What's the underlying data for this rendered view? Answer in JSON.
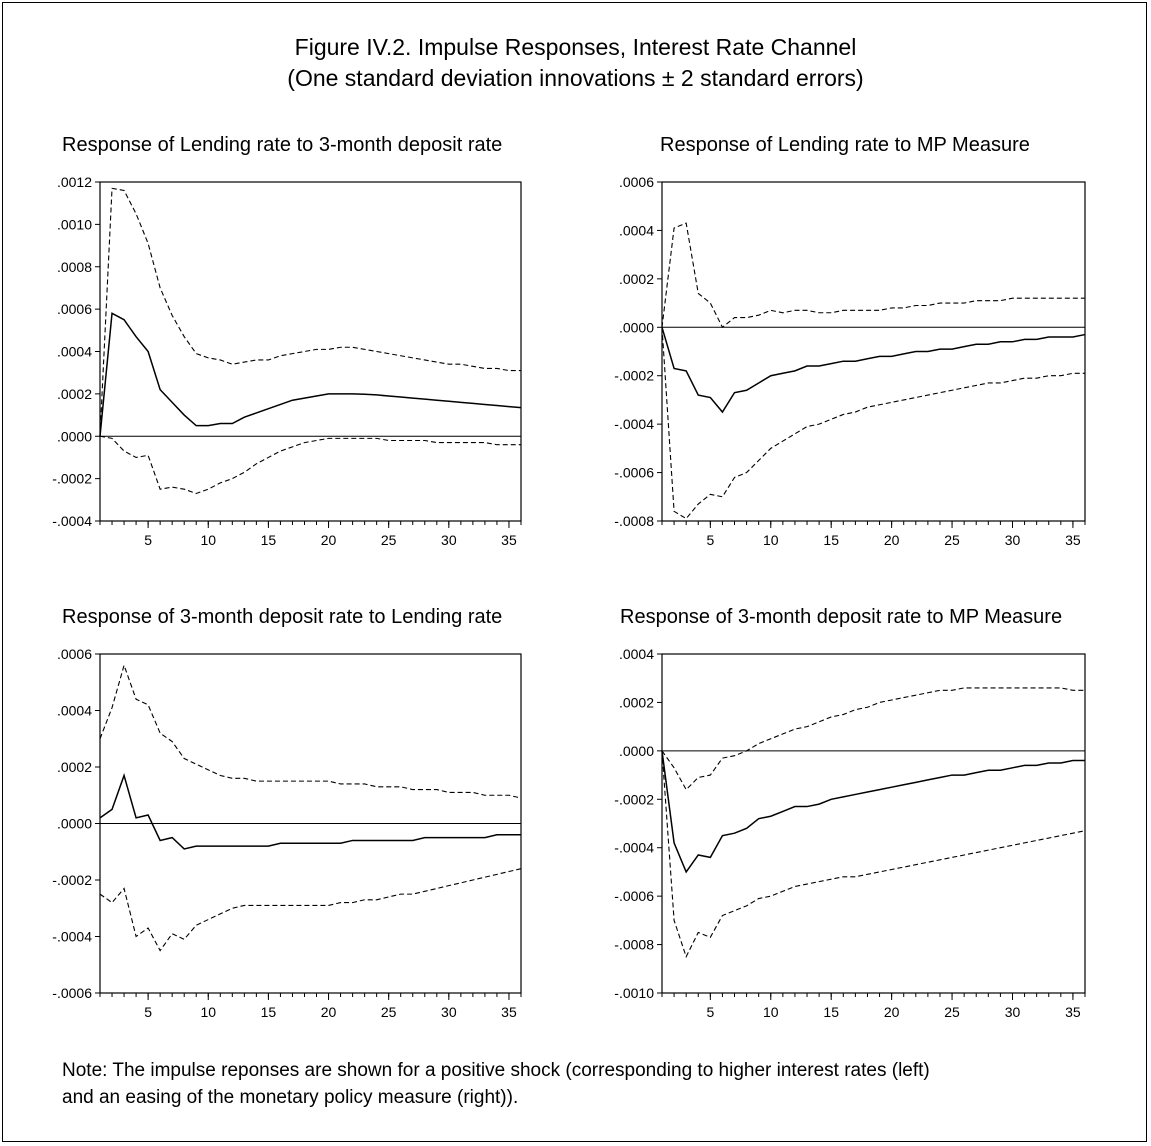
{
  "figure": {
    "title_line1": "Figure IV.2. Impulse Responses, Interest Rate Channel",
    "title_line2": "(One standard deviation innovations ± 2 standard errors)",
    "note_line1": "Note: The impulse reponses are shown for a positive shock (corresponding to higher interest rates (left)",
    "note_line2": " and an easing of the monetary policy measure (right))."
  },
  "chart_data": [
    {
      "type": "line",
      "title": "Response of Lending rate to 3-month deposit rate",
      "xlim": [
        1,
        36
      ],
      "ylim": [
        -0.0004,
        0.0012
      ],
      "xticks": [
        5,
        10,
        15,
        20,
        25,
        30,
        35
      ],
      "yticks": [
        -0.0004,
        -0.0002,
        0.0,
        0.0002,
        0.0004,
        0.0006,
        0.0008,
        0.001,
        0.0012
      ],
      "ytick_labels": [
        "-.0004",
        "-.0002",
        ".0000",
        ".0002",
        ".0004",
        ".0006",
        ".0008",
        ".0010",
        ".0012"
      ],
      "series": [
        {
          "style": "solid",
          "values": [
            0,
            0.00058,
            0.00055,
            0.00047,
            0.0004,
            0.00022,
            0.00016,
            0.0001,
            5e-05,
            5e-05,
            6e-05,
            6e-05,
            9e-05,
            0.00011,
            0.00013,
            0.00015,
            0.00017,
            0.00018,
            0.00019,
            0.0002,
            0.0002,
            0.0002,
            0.000198,
            0.000195,
            0.00019,
            0.000185,
            0.00018,
            0.000175,
            0.00017,
            0.000165,
            0.00016,
            0.000155,
            0.00015,
            0.000145,
            0.00014,
            0.000135
          ]
        },
        {
          "style": "dashed",
          "values": [
            0,
            0.00117,
            0.00116,
            0.00105,
            0.00091,
            0.0007,
            0.00057,
            0.00047,
            0.00039,
            0.00037,
            0.00036,
            0.00034,
            0.00035,
            0.00036,
            0.00036,
            0.00038,
            0.00039,
            0.0004,
            0.00041,
            0.00041,
            0.00042,
            0.00042,
            0.00041,
            0.0004,
            0.00039,
            0.00038,
            0.00037,
            0.00036,
            0.00035,
            0.00034,
            0.00034,
            0.00033,
            0.00032,
            0.00032,
            0.00031,
            0.00031
          ]
        },
        {
          "style": "dashed",
          "values": [
            0,
            -1e-05,
            -7e-05,
            -0.0001,
            -9e-05,
            -0.00025,
            -0.00024,
            -0.00025,
            -0.00027,
            -0.00025,
            -0.00022,
            -0.0002,
            -0.00017,
            -0.00013,
            -0.0001,
            -7e-05,
            -5e-05,
            -3e-05,
            -2e-05,
            -1e-05,
            -1e-05,
            -1e-05,
            -1e-05,
            -1e-05,
            -2e-05,
            -2e-05,
            -2e-05,
            -2e-05,
            -3e-05,
            -3e-05,
            -3e-05,
            -3e-05,
            -3e-05,
            -4e-05,
            -4e-05,
            -4e-05
          ]
        }
      ]
    },
    {
      "type": "line",
      "title": "Response of Lending rate to MP Measure",
      "xlim": [
        1,
        36
      ],
      "ylim": [
        -0.0008,
        0.0006
      ],
      "xticks": [
        5,
        10,
        15,
        20,
        25,
        30,
        35
      ],
      "yticks": [
        -0.0008,
        -0.0006,
        -0.0004,
        -0.0002,
        0.0,
        0.0002,
        0.0004,
        0.0006
      ],
      "ytick_labels": [
        "-.0008",
        "-.0006",
        "-.0004",
        "-.0002",
        ".0000",
        ".0002",
        ".0004",
        ".0006"
      ],
      "series": [
        {
          "style": "solid",
          "values": [
            0,
            -0.00017,
            -0.00018,
            -0.00028,
            -0.00029,
            -0.00035,
            -0.00027,
            -0.00026,
            -0.00023,
            -0.0002,
            -0.00019,
            -0.00018,
            -0.00016,
            -0.00016,
            -0.00015,
            -0.00014,
            -0.00014,
            -0.00013,
            -0.00012,
            -0.00012,
            -0.00011,
            -0.0001,
            -0.0001,
            -9e-05,
            -9e-05,
            -8e-05,
            -7e-05,
            -7e-05,
            -6e-05,
            -6e-05,
            -5e-05,
            -5e-05,
            -4e-05,
            -4e-05,
            -4e-05,
            -3e-05
          ]
        },
        {
          "style": "dashed",
          "values": [
            0,
            0.00041,
            0.00043,
            0.00014,
            0.0001,
            0.0,
            4e-05,
            4e-05,
            5e-05,
            7e-05,
            6e-05,
            7e-05,
            7e-05,
            6e-05,
            6e-05,
            7e-05,
            7e-05,
            7e-05,
            7e-05,
            8e-05,
            8e-05,
            9e-05,
            9e-05,
            0.0001,
            0.0001,
            0.0001,
            0.00011,
            0.00011,
            0.00011,
            0.00012,
            0.00012,
            0.00012,
            0.00012,
            0.00012,
            0.00012,
            0.00012
          ]
        },
        {
          "style": "dashed",
          "values": [
            0,
            -0.00076,
            -0.00079,
            -0.00073,
            -0.00069,
            -0.0007,
            -0.00062,
            -0.0006,
            -0.00055,
            -0.0005,
            -0.00047,
            -0.00044,
            -0.00041,
            -0.0004,
            -0.00038,
            -0.00036,
            -0.00035,
            -0.00033,
            -0.00032,
            -0.00031,
            -0.0003,
            -0.00029,
            -0.00028,
            -0.00027,
            -0.00026,
            -0.00025,
            -0.00024,
            -0.00023,
            -0.00023,
            -0.00022,
            -0.00021,
            -0.00021,
            -0.0002,
            -0.0002,
            -0.00019,
            -0.00019
          ]
        }
      ]
    },
    {
      "type": "line",
      "title": "Response of 3-month deposit rate to Lending rate",
      "xlim": [
        1,
        36
      ],
      "ylim": [
        -0.0006,
        0.0006
      ],
      "xticks": [
        5,
        10,
        15,
        20,
        25,
        30,
        35
      ],
      "yticks": [
        -0.0006,
        -0.0004,
        -0.0002,
        0.0,
        0.0002,
        0.0004,
        0.0006
      ],
      "ytick_labels": [
        "-.0006",
        "-.0004",
        "-.0002",
        ".0000",
        ".0002",
        ".0004",
        ".0006"
      ],
      "series": [
        {
          "style": "solid",
          "values": [
            2e-05,
            5e-05,
            0.00017,
            2e-05,
            3e-05,
            -6e-05,
            -5e-05,
            -9e-05,
            -8e-05,
            -8e-05,
            -8e-05,
            -8e-05,
            -8e-05,
            -8e-05,
            -8e-05,
            -7e-05,
            -7e-05,
            -7e-05,
            -7e-05,
            -7e-05,
            -7e-05,
            -6e-05,
            -6e-05,
            -6e-05,
            -6e-05,
            -6e-05,
            -6e-05,
            -5e-05,
            -5e-05,
            -5e-05,
            -5e-05,
            -5e-05,
            -5e-05,
            -4e-05,
            -4e-05,
            -4e-05
          ]
        },
        {
          "style": "dashed",
          "values": [
            0.0003,
            0.00041,
            0.00056,
            0.00044,
            0.00042,
            0.00032,
            0.00029,
            0.00023,
            0.00021,
            0.00019,
            0.00017,
            0.00016,
            0.00016,
            0.00015,
            0.00015,
            0.00015,
            0.00015,
            0.00015,
            0.00015,
            0.00015,
            0.00014,
            0.00014,
            0.00014,
            0.00013,
            0.00013,
            0.00013,
            0.00012,
            0.00012,
            0.00012,
            0.00011,
            0.00011,
            0.00011,
            0.0001,
            0.0001,
            0.0001,
            9e-05
          ]
        },
        {
          "style": "dashed",
          "values": [
            -0.00025,
            -0.00028,
            -0.00023,
            -0.0004,
            -0.00037,
            -0.00045,
            -0.00039,
            -0.00041,
            -0.00036,
            -0.00034,
            -0.00032,
            -0.0003,
            -0.00029,
            -0.00029,
            -0.00029,
            -0.00029,
            -0.00029,
            -0.00029,
            -0.00029,
            -0.00029,
            -0.00028,
            -0.00028,
            -0.00027,
            -0.00027,
            -0.00026,
            -0.00025,
            -0.00025,
            -0.00024,
            -0.00023,
            -0.00022,
            -0.00021,
            -0.0002,
            -0.00019,
            -0.00018,
            -0.00017,
            -0.00016
          ]
        }
      ]
    },
    {
      "type": "line",
      "title": "Response of 3-month deposit rate to MP Measure",
      "xlim": [
        1,
        36
      ],
      "ylim": [
        -0.001,
        0.0004
      ],
      "xticks": [
        5,
        10,
        15,
        20,
        25,
        30,
        35
      ],
      "yticks": [
        -0.001,
        -0.0008,
        -0.0006,
        -0.0004,
        -0.0002,
        0.0,
        0.0002,
        0.0004
      ],
      "ytick_labels": [
        "-.0010",
        "-.0008",
        "-.0006",
        "-.0004",
        "-.0002",
        ".0000",
        ".0002",
        ".0004"
      ],
      "series": [
        {
          "style": "solid",
          "values": [
            0,
            -0.00038,
            -0.0005,
            -0.00043,
            -0.00044,
            -0.00035,
            -0.00034,
            -0.00032,
            -0.00028,
            -0.00027,
            -0.00025,
            -0.00023,
            -0.00023,
            -0.00022,
            -0.0002,
            -0.00019,
            -0.00018,
            -0.00017,
            -0.00016,
            -0.00015,
            -0.00014,
            -0.00013,
            -0.00012,
            -0.00011,
            -0.0001,
            -0.0001,
            -9e-05,
            -8e-05,
            -8e-05,
            -7e-05,
            -6e-05,
            -6e-05,
            -5e-05,
            -5e-05,
            -4e-05,
            -4e-05
          ]
        },
        {
          "style": "dashed",
          "values": [
            0,
            -7e-05,
            -0.00016,
            -0.00011,
            -0.0001,
            -3e-05,
            -2e-05,
            0.0,
            3e-05,
            5e-05,
            7e-05,
            9e-05,
            0.0001,
            0.00012,
            0.00014,
            0.00015,
            0.00017,
            0.00018,
            0.0002,
            0.00021,
            0.00022,
            0.00023,
            0.00024,
            0.00025,
            0.00025,
            0.00026,
            0.00026,
            0.00026,
            0.00026,
            0.00026,
            0.00026,
            0.00026,
            0.00026,
            0.00026,
            0.00025,
            0.00025
          ]
        },
        {
          "style": "dashed",
          "values": [
            0,
            -0.0007,
            -0.00085,
            -0.00075,
            -0.00077,
            -0.00068,
            -0.00066,
            -0.00064,
            -0.00061,
            -0.0006,
            -0.00058,
            -0.00056,
            -0.00055,
            -0.00054,
            -0.00053,
            -0.00052,
            -0.00052,
            -0.00051,
            -0.0005,
            -0.00049,
            -0.00048,
            -0.00047,
            -0.00046,
            -0.00045,
            -0.00044,
            -0.00043,
            -0.00042,
            -0.00041,
            -0.0004,
            -0.00039,
            -0.00038,
            -0.00037,
            -0.00036,
            -0.00035,
            -0.00034,
            -0.00033
          ]
        }
      ]
    }
  ]
}
